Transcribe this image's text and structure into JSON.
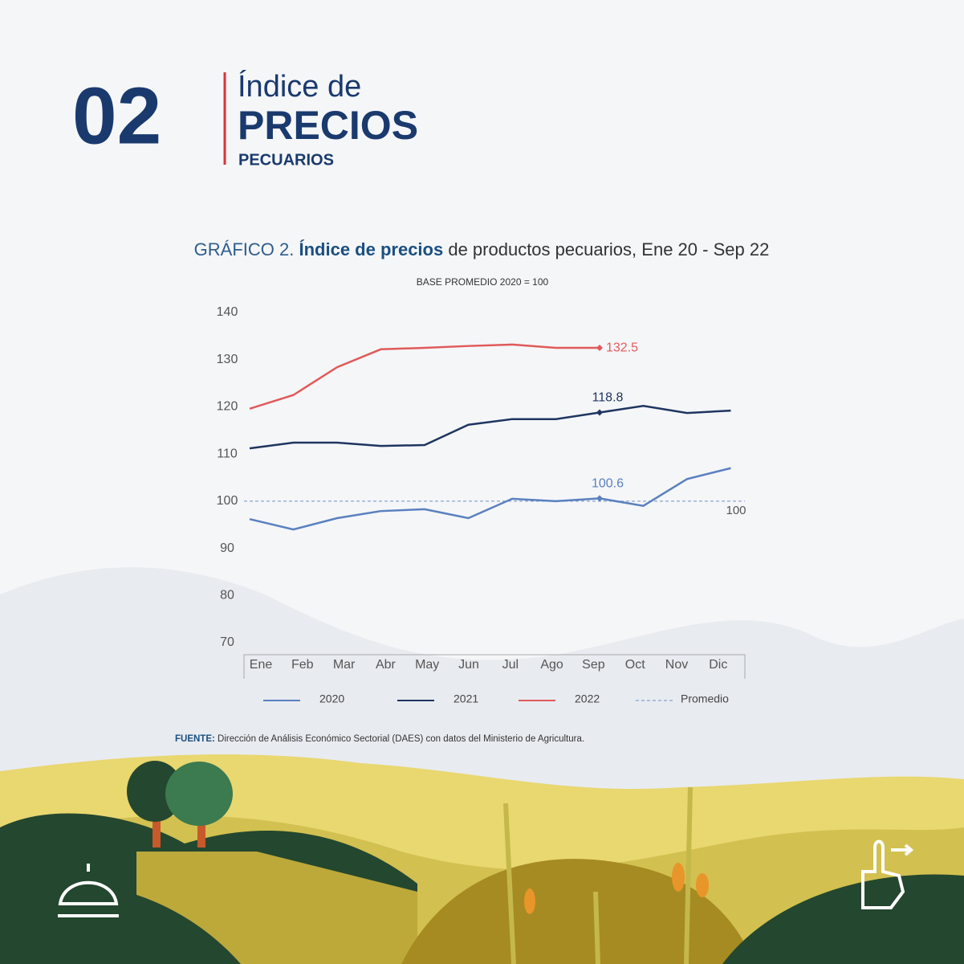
{
  "header": {
    "number": "02",
    "line1": "Índice de",
    "line2": "PRECIOS",
    "line3": "PECUARIOS"
  },
  "chart_data": {
    "type": "line",
    "title_parts": [
      "GRÁFICO 2.",
      "Índice de precios",
      "de productos pecuarios,",
      "Ene 20 - Sep 22"
    ],
    "subtitle": "BASE PROMEDIO 2020 = 100",
    "categories": [
      "Ene",
      "Feb",
      "Mar",
      "Abr",
      "May",
      "Jun",
      "Jul",
      "Ago",
      "Sep",
      "Oct",
      "Nov",
      "Dic"
    ],
    "series": [
      {
        "name": "2020",
        "color": "#5a80bf",
        "values": [
          96.2,
          94.0,
          96.4,
          97.9,
          98.3,
          96.4,
          100.5,
          100.0,
          100.6,
          99.0,
          104.7,
          107.0
        ],
        "labeled_point": 8,
        "label_position": "above"
      },
      {
        "name": "2021",
        "color": "#1f3560",
        "values": [
          111.2,
          112.4,
          112.4,
          111.7,
          111.9,
          116.2,
          117.4,
          117.4,
          118.8,
          120.2,
          118.7,
          119.2
        ],
        "labeled_point": 8,
        "label_position": "above"
      },
      {
        "name": "2022",
        "color": "#e05a5a",
        "values": [
          119.6,
          122.5,
          128.4,
          132.2,
          132.5,
          132.9,
          133.2,
          132.5,
          132.5,
          null,
          null,
          null
        ],
        "labeled_point": 8,
        "label_position": "right"
      }
    ],
    "reference_line": {
      "name": "Promedio",
      "value": 100,
      "color": "#6f8fc8",
      "dashed": true
    },
    "ylim": [
      70,
      140
    ],
    "yticks": [
      70,
      80,
      90,
      100,
      110,
      120,
      130,
      140
    ],
    "grid": false,
    "legend": "bottom"
  },
  "source": {
    "label": "FUENTE:",
    "text": "Dirección de Análisis Económico Sectorial (DAES) con datos del Ministerio de Agricultura."
  }
}
